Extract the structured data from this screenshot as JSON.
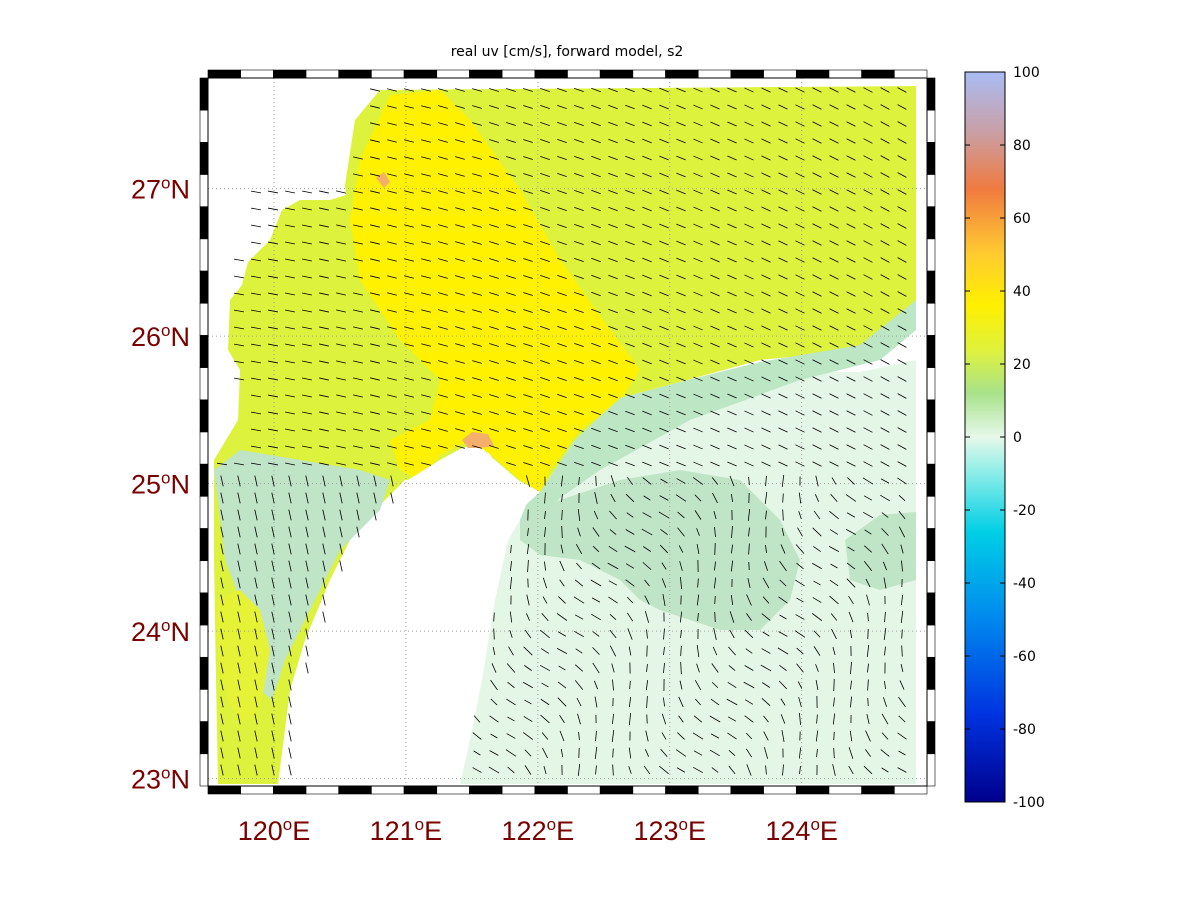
{
  "title": "real uv [cm/s], forward model, s2",
  "map": {
    "lon_range": [
      119.5,
      124.95
    ],
    "lat_range": [
      22.95,
      27.75
    ],
    "lat_ticks": [
      {
        "value": 23,
        "deg": "23",
        "hemi": "N"
      },
      {
        "value": 24,
        "deg": "24",
        "hemi": "N"
      },
      {
        "value": 25,
        "deg": "25",
        "hemi": "N"
      },
      {
        "value": 26,
        "deg": "26",
        "hemi": "N"
      },
      {
        "value": 27,
        "deg": "27",
        "hemi": "N"
      }
    ],
    "lon_ticks": [
      {
        "value": 120,
        "deg": "120",
        "hemi": "E"
      },
      {
        "value": 121,
        "deg": "121",
        "hemi": "E"
      },
      {
        "value": 122,
        "deg": "122",
        "hemi": "E"
      },
      {
        "value": 123,
        "deg": "123",
        "hemi": "E"
      },
      {
        "value": 124,
        "deg": "124",
        "hemi": "E"
      }
    ],
    "grid": true,
    "frame": "black-white checkered border",
    "land_color": "#ffffff"
  },
  "colorbar": {
    "min": -100,
    "max": 100,
    "ticks": [
      "100",
      "80",
      "60",
      "40",
      "20",
      "0",
      "-20",
      "-40",
      "-60",
      "-80",
      "-100"
    ],
    "colormap": "jet (pastel shading)"
  },
  "colors": {
    "land": "#ffffff",
    "near_zero": "#e6f8e8",
    "low_positive": "#bfe4c6",
    "mid_positive": "#ddf53a",
    "high_positive": "#ffe300",
    "peak_positive": "#f2a060",
    "label_text": "#7a0000",
    "vectors": "#000000"
  }
}
